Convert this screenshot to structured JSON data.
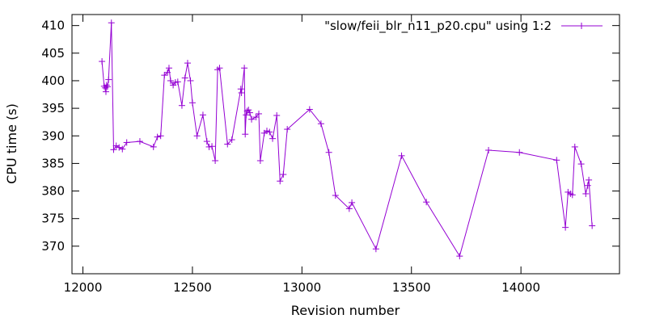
{
  "chart_data": {
    "type": "line",
    "title": "",
    "xlabel": "Revision number",
    "ylabel": "CPU time (s)",
    "xlim": [
      11950,
      14450
    ],
    "ylim": [
      365,
      412
    ],
    "x_ticks": [
      12000,
      12500,
      13000,
      13500,
      14000
    ],
    "y_ticks": [
      370,
      375,
      380,
      385,
      390,
      395,
      400,
      405,
      410
    ],
    "grid": false,
    "legend_position": "top-right",
    "series": [
      {
        "name": "\"slow/feii_blr_n11_p20.cpu\" using 1:2",
        "color": "#9400d3",
        "marker": "plus",
        "points": [
          [
            12087,
            403.5
          ],
          [
            12097,
            399.0
          ],
          [
            12102,
            398.7
          ],
          [
            12105,
            398.0
          ],
          [
            12108,
            399.2
          ],
          [
            12112,
            398.9
          ],
          [
            12117,
            400.2
          ],
          [
            12130,
            410.5
          ],
          [
            12140,
            387.5
          ],
          [
            12152,
            388.2
          ],
          [
            12165,
            387.9
          ],
          [
            12180,
            387.6
          ],
          [
            12200,
            388.8
          ],
          [
            12260,
            389.0
          ],
          [
            12322,
            388.0
          ],
          [
            12340,
            389.8
          ],
          [
            12355,
            390.0
          ],
          [
            12372,
            401.0
          ],
          [
            12386,
            401.5
          ],
          [
            12393,
            402.3
          ],
          [
            12400,
            400.0
          ],
          [
            12412,
            399.2
          ],
          [
            12422,
            399.7
          ],
          [
            12433,
            399.8
          ],
          [
            12452,
            395.5
          ],
          [
            12466,
            400.5
          ],
          [
            12478,
            403.2
          ],
          [
            12491,
            400.0
          ],
          [
            12500,
            396.0
          ],
          [
            12521,
            390.0
          ],
          [
            12548,
            393.8
          ],
          [
            12566,
            389.0
          ],
          [
            12576,
            388.0
          ],
          [
            12589,
            388.1
          ],
          [
            12604,
            385.5
          ],
          [
            12615,
            402.0
          ],
          [
            12624,
            402.3
          ],
          [
            12660,
            388.5
          ],
          [
            12680,
            389.3
          ],
          [
            12721,
            398.5
          ],
          [
            12724,
            397.8
          ],
          [
            12737,
            402.3
          ],
          [
            12741,
            390.3
          ],
          [
            12745,
            393.8
          ],
          [
            12750,
            394.5
          ],
          [
            12756,
            394.7
          ],
          [
            12762,
            394.2
          ],
          [
            12770,
            393.0
          ],
          [
            12790,
            393.4
          ],
          [
            12803,
            394.0
          ],
          [
            12810,
            385.5
          ],
          [
            12828,
            390.5
          ],
          [
            12840,
            390.9
          ],
          [
            12852,
            390.7
          ],
          [
            12866,
            389.5
          ],
          [
            12885,
            393.7
          ],
          [
            12900,
            381.8
          ],
          [
            12915,
            383.0
          ],
          [
            12933,
            391.2
          ],
          [
            13035,
            394.8
          ],
          [
            13087,
            392.2
          ],
          [
            13123,
            387.0
          ],
          [
            13153,
            379.2
          ],
          [
            13216,
            376.8
          ],
          [
            13228,
            377.9
          ],
          [
            13338,
            369.5
          ],
          [
            13455,
            386.4
          ],
          [
            13568,
            378.0
          ],
          [
            13720,
            368.2
          ],
          [
            13852,
            387.4
          ],
          [
            13993,
            387.0
          ],
          [
            14163,
            385.6
          ],
          [
            14203,
            373.4
          ],
          [
            14215,
            379.8
          ],
          [
            14226,
            379.5
          ],
          [
            14235,
            379.3
          ],
          [
            14246,
            388.0
          ],
          [
            14275,
            384.9
          ],
          [
            14296,
            379.5
          ],
          [
            14305,
            381.0
          ],
          [
            14310,
            382.0
          ],
          [
            14325,
            373.7
          ]
        ]
      }
    ]
  }
}
